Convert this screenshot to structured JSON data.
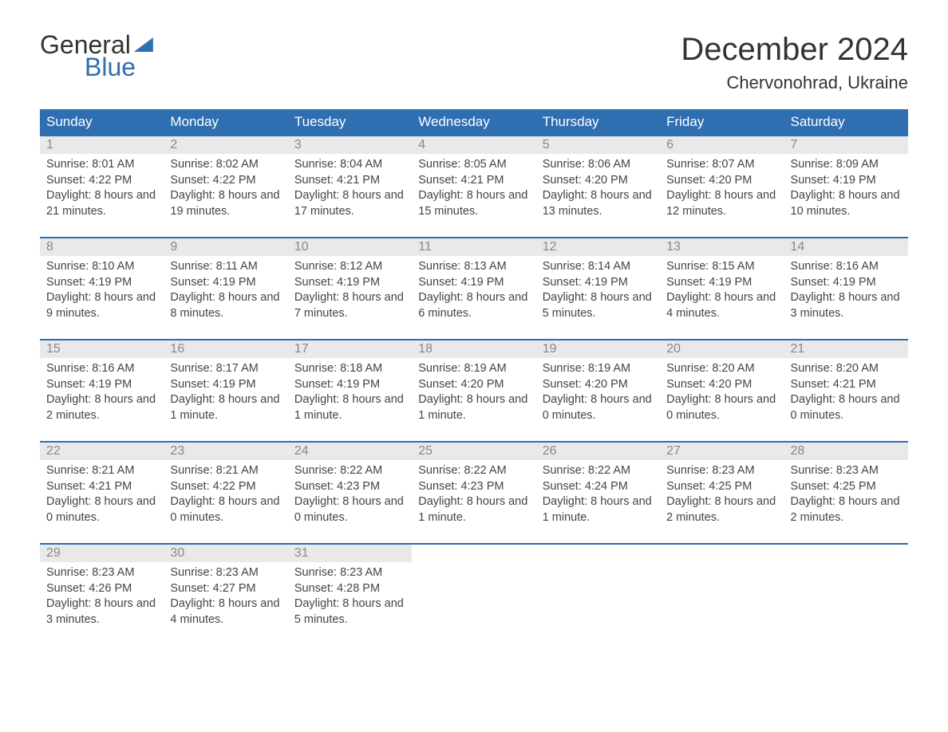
{
  "logo": {
    "top": "General",
    "bottom": "Blue"
  },
  "title": "December 2024",
  "location": "Chervonohrad, Ukraine",
  "colors": {
    "brand": "#2f6eb1",
    "header_bg": "#2f6eb1",
    "daynum_bg": "#e9e9e9",
    "text": "#444444",
    "bg": "#ffffff"
  },
  "weekdays": [
    "Sunday",
    "Monday",
    "Tuesday",
    "Wednesday",
    "Thursday",
    "Friday",
    "Saturday"
  ],
  "weeks": [
    [
      {
        "n": "1",
        "sr": "8:01 AM",
        "ss": "4:22 PM",
        "d": "8 hours and 21 minutes."
      },
      {
        "n": "2",
        "sr": "8:02 AM",
        "ss": "4:22 PM",
        "d": "8 hours and 19 minutes."
      },
      {
        "n": "3",
        "sr": "8:04 AM",
        "ss": "4:21 PM",
        "d": "8 hours and 17 minutes."
      },
      {
        "n": "4",
        "sr": "8:05 AM",
        "ss": "4:21 PM",
        "d": "8 hours and 15 minutes."
      },
      {
        "n": "5",
        "sr": "8:06 AM",
        "ss": "4:20 PM",
        "d": "8 hours and 13 minutes."
      },
      {
        "n": "6",
        "sr": "8:07 AM",
        "ss": "4:20 PM",
        "d": "8 hours and 12 minutes."
      },
      {
        "n": "7",
        "sr": "8:09 AM",
        "ss": "4:19 PM",
        "d": "8 hours and 10 minutes."
      }
    ],
    [
      {
        "n": "8",
        "sr": "8:10 AM",
        "ss": "4:19 PM",
        "d": "8 hours and 9 minutes."
      },
      {
        "n": "9",
        "sr": "8:11 AM",
        "ss": "4:19 PM",
        "d": "8 hours and 8 minutes."
      },
      {
        "n": "10",
        "sr": "8:12 AM",
        "ss": "4:19 PM",
        "d": "8 hours and 7 minutes."
      },
      {
        "n": "11",
        "sr": "8:13 AM",
        "ss": "4:19 PM",
        "d": "8 hours and 6 minutes."
      },
      {
        "n": "12",
        "sr": "8:14 AM",
        "ss": "4:19 PM",
        "d": "8 hours and 5 minutes."
      },
      {
        "n": "13",
        "sr": "8:15 AM",
        "ss": "4:19 PM",
        "d": "8 hours and 4 minutes."
      },
      {
        "n": "14",
        "sr": "8:16 AM",
        "ss": "4:19 PM",
        "d": "8 hours and 3 minutes."
      }
    ],
    [
      {
        "n": "15",
        "sr": "8:16 AM",
        "ss": "4:19 PM",
        "d": "8 hours and 2 minutes."
      },
      {
        "n": "16",
        "sr": "8:17 AM",
        "ss": "4:19 PM",
        "d": "8 hours and 1 minute."
      },
      {
        "n": "17",
        "sr": "8:18 AM",
        "ss": "4:19 PM",
        "d": "8 hours and 1 minute."
      },
      {
        "n": "18",
        "sr": "8:19 AM",
        "ss": "4:20 PM",
        "d": "8 hours and 1 minute."
      },
      {
        "n": "19",
        "sr": "8:19 AM",
        "ss": "4:20 PM",
        "d": "8 hours and 0 minutes."
      },
      {
        "n": "20",
        "sr": "8:20 AM",
        "ss": "4:20 PM",
        "d": "8 hours and 0 minutes."
      },
      {
        "n": "21",
        "sr": "8:20 AM",
        "ss": "4:21 PM",
        "d": "8 hours and 0 minutes."
      }
    ],
    [
      {
        "n": "22",
        "sr": "8:21 AM",
        "ss": "4:21 PM",
        "d": "8 hours and 0 minutes."
      },
      {
        "n": "23",
        "sr": "8:21 AM",
        "ss": "4:22 PM",
        "d": "8 hours and 0 minutes."
      },
      {
        "n": "24",
        "sr": "8:22 AM",
        "ss": "4:23 PM",
        "d": "8 hours and 0 minutes."
      },
      {
        "n": "25",
        "sr": "8:22 AM",
        "ss": "4:23 PM",
        "d": "8 hours and 1 minute."
      },
      {
        "n": "26",
        "sr": "8:22 AM",
        "ss": "4:24 PM",
        "d": "8 hours and 1 minute."
      },
      {
        "n": "27",
        "sr": "8:23 AM",
        "ss": "4:25 PM",
        "d": "8 hours and 2 minutes."
      },
      {
        "n": "28",
        "sr": "8:23 AM",
        "ss": "4:25 PM",
        "d": "8 hours and 2 minutes."
      }
    ],
    [
      {
        "n": "29",
        "sr": "8:23 AM",
        "ss": "4:26 PM",
        "d": "8 hours and 3 minutes."
      },
      {
        "n": "30",
        "sr": "8:23 AM",
        "ss": "4:27 PM",
        "d": "8 hours and 4 minutes."
      },
      {
        "n": "31",
        "sr": "8:23 AM",
        "ss": "4:28 PM",
        "d": "8 hours and 5 minutes."
      },
      null,
      null,
      null,
      null
    ]
  ],
  "labels": {
    "sunrise": "Sunrise: ",
    "sunset": "Sunset: ",
    "daylight": "Daylight: "
  }
}
